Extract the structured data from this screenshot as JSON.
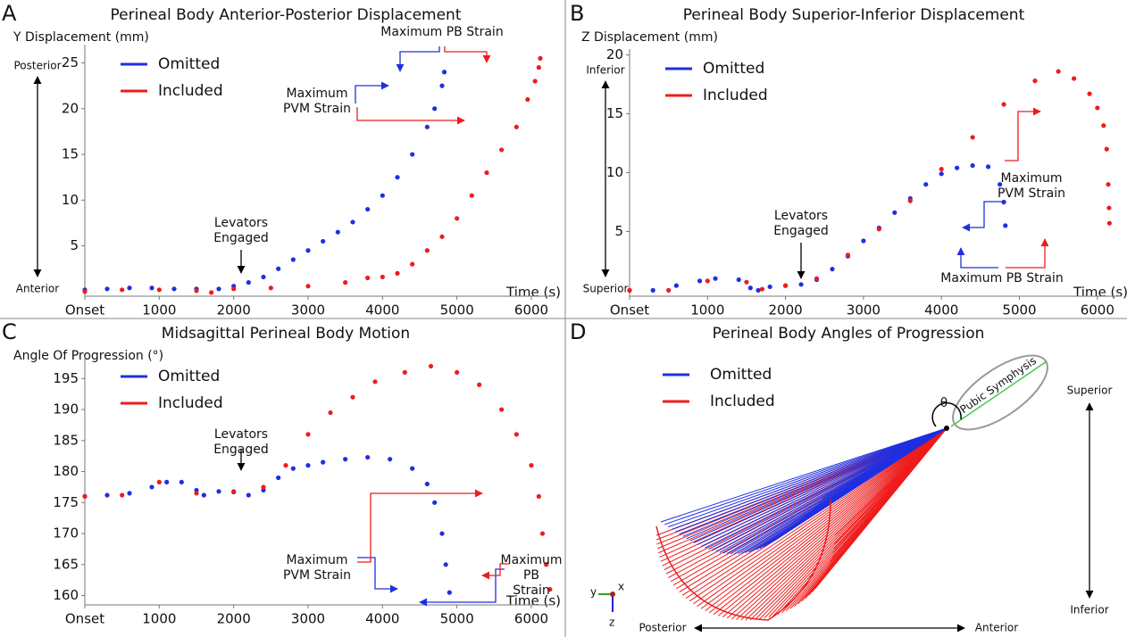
{
  "chart_data": [
    {
      "type": "scatter",
      "label": "A",
      "title": "Perineal Body Anterior-Posterior Displacement",
      "ylabel": "Y Displacement (mm)",
      "xlabel": "Time (s)",
      "direction_labels": [
        "Posterior",
        "Anterior"
      ],
      "xlim": [
        0,
        6300
      ],
      "ylim": [
        -0.5,
        27
      ],
      "xticks": [
        {
          "value": 0,
          "label": "Onset"
        },
        1000,
        2000,
        3000,
        4000,
        5000,
        6000
      ],
      "yticks": [
        5,
        10,
        15,
        20,
        25
      ],
      "legend": "upper left",
      "series": [
        {
          "name": "Omitted",
          "color": "#1f2fe0",
          "x": [
            0,
            300,
            600,
            900,
            1200,
            1500,
            1800,
            2000,
            2200,
            2400,
            2600,
            2800,
            3000,
            3200,
            3400,
            3600,
            3800,
            4000,
            4200,
            4400,
            4600,
            4700,
            4800,
            4830
          ],
          "values": [
            0.2,
            0.3,
            0.4,
            0.4,
            0.3,
            0.3,
            0.3,
            0.6,
            1.0,
            1.6,
            2.5,
            3.5,
            4.5,
            5.5,
            6.5,
            7.6,
            9,
            10.5,
            12.5,
            15,
            18,
            20,
            22.5,
            24
          ]
        },
        {
          "name": "Included",
          "color": "#ee1c1c",
          "x": [
            0,
            500,
            1000,
            1500,
            1700,
            2000,
            2500,
            3000,
            3500,
            3800,
            4000,
            4200,
            4400,
            4600,
            4800,
            5000,
            5200,
            5400,
            5600,
            5800,
            5950,
            6050,
            6100,
            6120
          ],
          "values": [
            0,
            0.2,
            0.2,
            0.1,
            -0.1,
            0.3,
            0.4,
            0.6,
            1.0,
            1.5,
            1.6,
            2.0,
            3,
            4.5,
            6,
            8,
            10.5,
            13,
            15.5,
            18,
            21,
            23,
            24.5,
            25.5
          ]
        }
      ],
      "annotations": [
        [
          "Levators",
          "Engaged"
        ],
        [
          "Maximum PB Strain"
        ],
        [
          "Maximum",
          "PVM Strain"
        ]
      ]
    },
    {
      "type": "scatter",
      "label": "B",
      "title": "Perineal Body Superior-Inferior Displacement",
      "ylabel": "Z Displacement (mm)",
      "xlabel": "Time (s)",
      "direction_labels": [
        "Inferior",
        "Superior"
      ],
      "xlim": [
        0,
        6300
      ],
      "ylim": [
        -0.5,
        20.5
      ],
      "xticks": [
        {
          "value": 0,
          "label": "Onset"
        },
        1000,
        2000,
        3000,
        4000,
        5000,
        6000
      ],
      "yticks": [
        5,
        10,
        15,
        20
      ],
      "legend": "upper left",
      "series": [
        {
          "name": "Omitted",
          "color": "#1f2fe0",
          "x": [
            0,
            300,
            600,
            900,
            1100,
            1400,
            1550,
            1650,
            1800,
            2000,
            2200,
            2400,
            2600,
            2800,
            3000,
            3200,
            3400,
            3600,
            3800,
            4000,
            4200,
            4400,
            4600,
            4750,
            4800,
            4820
          ],
          "values": [
            0,
            0,
            0.4,
            0.8,
            1,
            0.9,
            0.2,
            0,
            0.3,
            0.4,
            0.5,
            0.9,
            1.8,
            2.9,
            4.2,
            5.3,
            6.6,
            7.8,
            9,
            9.9,
            10.4,
            10.6,
            10.5,
            9,
            7.5,
            5.5
          ]
        },
        {
          "name": "Included",
          "color": "#ee1c1c",
          "x": [
            0,
            500,
            1000,
            1500,
            1700,
            2000,
            2400,
            2800,
            3200,
            3600,
            4000,
            4400,
            4800,
            5200,
            5500,
            5700,
            5900,
            6000,
            6080,
            6120,
            6140,
            6150,
            6155
          ],
          "values": [
            0,
            0,
            0.8,
            0.7,
            0.1,
            0.4,
            1,
            3,
            5.2,
            7.6,
            10.3,
            13,
            15.8,
            17.8,
            18.6,
            18,
            16.7,
            15.5,
            14,
            12,
            9,
            7,
            5.7
          ]
        }
      ],
      "annotations": [
        [
          "Levators",
          "Engaged"
        ],
        [
          "Maximum",
          "PVM Strain"
        ],
        [
          "Maximum PB Strain"
        ]
      ]
    },
    {
      "type": "scatter",
      "label": "C",
      "title": "Midsagittal Perineal Body Motion",
      "ylabel": "Angle Of Progression (°)",
      "xlabel": "Time (s)",
      "xlim": [
        0,
        6300
      ],
      "ylim": [
        158.5,
        198.5
      ],
      "xticks": [
        {
          "value": 0,
          "label": "Onset"
        },
        1000,
        2000,
        3000,
        4000,
        5000,
        6000
      ],
      "yticks": [
        160,
        165,
        170,
        175,
        180,
        185,
        190,
        195
      ],
      "legend": "upper left",
      "series": [
        {
          "name": "Omitted",
          "color": "#1f2fe0",
          "x": [
            0,
            300,
            600,
            900,
            1100,
            1300,
            1500,
            1600,
            1800,
            2000,
            2200,
            2400,
            2600,
            2800,
            3000,
            3200,
            3500,
            3800,
            4100,
            4400,
            4600,
            4700,
            4800,
            4850,
            4900
          ],
          "values": [
            176,
            176.2,
            176.5,
            177.5,
            178.3,
            178.3,
            177,
            176.2,
            176.8,
            176.7,
            176.2,
            177,
            179,
            180.5,
            181,
            181.5,
            182,
            182.3,
            182,
            180.5,
            178,
            175,
            170,
            165,
            160.5
          ]
        },
        {
          "name": "Included",
          "color": "#ee1c1c",
          "x": [
            0,
            500,
            1000,
            1500,
            2000,
            2400,
            2700,
            3000,
            3300,
            3600,
            3900,
            4300,
            4650,
            5000,
            5300,
            5600,
            5800,
            6000,
            6100,
            6150,
            6200,
            6250
          ],
          "values": [
            176,
            176.2,
            178.3,
            176.5,
            176.8,
            177.5,
            181,
            186,
            189.5,
            192,
            194.5,
            196,
            197,
            196,
            194,
            190,
            186,
            181,
            176,
            170,
            165,
            161
          ]
        }
      ],
      "annotations": [
        [
          "Levators",
          "Engaged"
        ],
        [
          "Maximum",
          "PVM Strain"
        ],
        [
          "Maximum",
          "PB",
          "Strain"
        ]
      ]
    }
  ],
  "diagram": {
    "label": "D",
    "title": "Perineal Body Angles of Progression",
    "legend": [
      {
        "name": "Omitted",
        "color": "#1f2fe0"
      },
      {
        "name": "Included",
        "color": "#ee1c1c"
      }
    ],
    "structure": "Pubic Symphysis",
    "angle": "θ",
    "vertical": [
      "Superior",
      "Inferior"
    ],
    "horizontal": [
      "Posterior",
      "Anterior"
    ],
    "axes": [
      "y",
      "x",
      "z"
    ]
  }
}
